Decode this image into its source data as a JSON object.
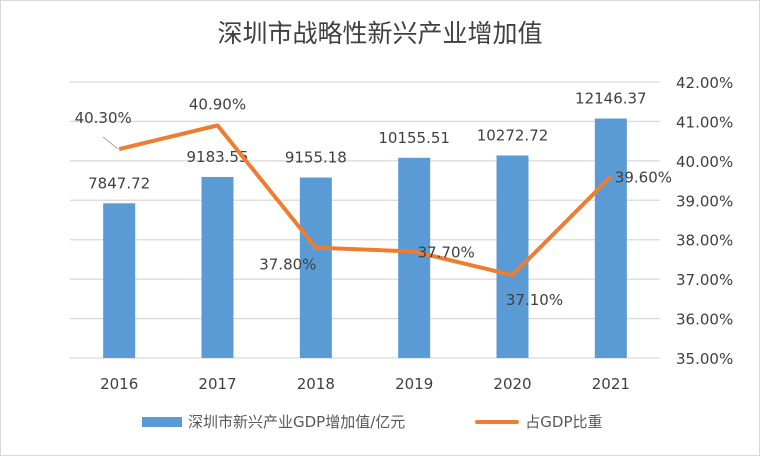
{
  "chart_data": {
    "type": "bar+line",
    "title": "深圳市战略性新兴产业增加值",
    "categories": [
      "2016",
      "2017",
      "2018",
      "2019",
      "2020",
      "2021"
    ],
    "series": [
      {
        "name": "深圳市新兴产业GDP增加值/亿元",
        "type": "bar",
        "axis": "left",
        "color": "#5b9bd5",
        "values": [
          7847.72,
          9183.55,
          9155.18,
          10155.51,
          10272.72,
          12146.37
        ],
        "labels": [
          "7847.72",
          "9183.55",
          "9155.18",
          "10155.51",
          "10272.72",
          "12146.37"
        ]
      },
      {
        "name": "占GDP比重",
        "type": "line",
        "axis": "right",
        "color": "#ed7d31",
        "values": [
          40.3,
          40.9,
          37.8,
          37.7,
          37.1,
          39.6
        ],
        "labels": [
          "40.30%",
          "40.90%",
          "37.80%",
          "37.70%",
          "37.10%",
          "39.60%"
        ]
      }
    ],
    "left_axis": {
      "range": [
        0,
        14000
      ],
      "visible": false
    },
    "right_axis": {
      "range": [
        35,
        42
      ],
      "ticks": [
        "35.00%",
        "36.00%",
        "37.00%",
        "38.00%",
        "39.00%",
        "40.00%",
        "41.00%",
        "42.00%"
      ]
    },
    "grid": true,
    "legend": "bottom"
  }
}
